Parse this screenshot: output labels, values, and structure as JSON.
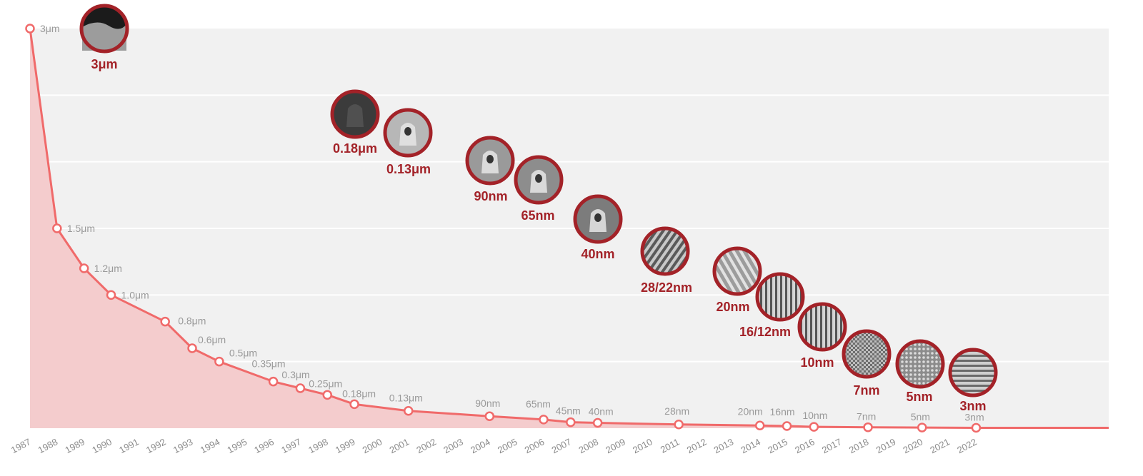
{
  "chart_data": {
    "type": "area",
    "categories": [
      "1987",
      "1988",
      "1989",
      "1990",
      "1991",
      "1992",
      "1993",
      "1994",
      "1995",
      "1996",
      "1997",
      "1998",
      "1999",
      "2000",
      "2001",
      "2002",
      "2003",
      "2004",
      "2005",
      "2006",
      "2007",
      "2008",
      "2009",
      "2010",
      "2011",
      "2012",
      "2013",
      "2014",
      "2015",
      "2016",
      "2017",
      "2018",
      "2019",
      "2020",
      "2021",
      "2022"
    ],
    "series": [
      {
        "points": [
          {
            "x": "1987",
            "y": 3.0,
            "label": "3μm"
          },
          {
            "x": "1988",
            "y": 1.5,
            "label": "1.5μm"
          },
          {
            "x": "1989",
            "y": 1.2,
            "label": "1.2μm"
          },
          {
            "x": "1990",
            "y": 1.0,
            "label": "1.0μm"
          },
          {
            "x": "1992",
            "y": 0.8,
            "label": "0.8μm"
          },
          {
            "x": "1993",
            "y": 0.6,
            "label": "0.6μm"
          },
          {
            "x": "1994",
            "y": 0.5,
            "label": "0.5μm"
          },
          {
            "x": "1996",
            "y": 0.35,
            "label": "0.35μm"
          },
          {
            "x": "1997",
            "y": 0.3,
            "label": "0.3μm"
          },
          {
            "x": "1998",
            "y": 0.25,
            "label": "0.25μm"
          },
          {
            "x": "1999",
            "y": 0.18,
            "label": "0.18μm"
          },
          {
            "x": "2001",
            "y": 0.13,
            "label": "0.13μm"
          },
          {
            "x": "2004",
            "y": 0.09,
            "label": "90nm"
          },
          {
            "x": "2006",
            "y": 0.065,
            "label": "65nm"
          },
          {
            "x": "2007",
            "y": 0.045,
            "label": "45nm"
          },
          {
            "x": "2008",
            "y": 0.04,
            "label": "40nm"
          },
          {
            "x": "2011",
            "y": 0.028,
            "label": "28nm"
          },
          {
            "x": "2014",
            "y": 0.02,
            "label": "20nm"
          },
          {
            "x": "2015",
            "y": 0.016,
            "label": "16nm"
          },
          {
            "x": "2016",
            "y": 0.01,
            "label": "10nm"
          },
          {
            "x": "2018",
            "y": 0.007,
            "label": "7nm"
          },
          {
            "x": "2020",
            "y": 0.005,
            "label": "5nm"
          },
          {
            "x": "2022",
            "y": 0.003,
            "label": "3nm"
          }
        ]
      }
    ],
    "ylim": [
      0,
      3
    ],
    "grid": true,
    "nodes": [
      {
        "label": "3μm"
      },
      {
        "label": "0.18μm"
      },
      {
        "label": "0.13μm"
      },
      {
        "label": "90nm"
      },
      {
        "label": "65nm"
      },
      {
        "label": "40nm"
      },
      {
        "label": "28/22nm"
      },
      {
        "label": "20nm"
      },
      {
        "label": "16/12nm"
      },
      {
        "label": "10nm"
      },
      {
        "label": "7nm"
      },
      {
        "label": "5nm"
      },
      {
        "label": "3nm"
      }
    ],
    "colors": {
      "line": "#f06a6a",
      "area": "#f4cccd",
      "plot_bg": "#f1f1f1",
      "ring": "#a32228",
      "label": "#a32228"
    }
  }
}
